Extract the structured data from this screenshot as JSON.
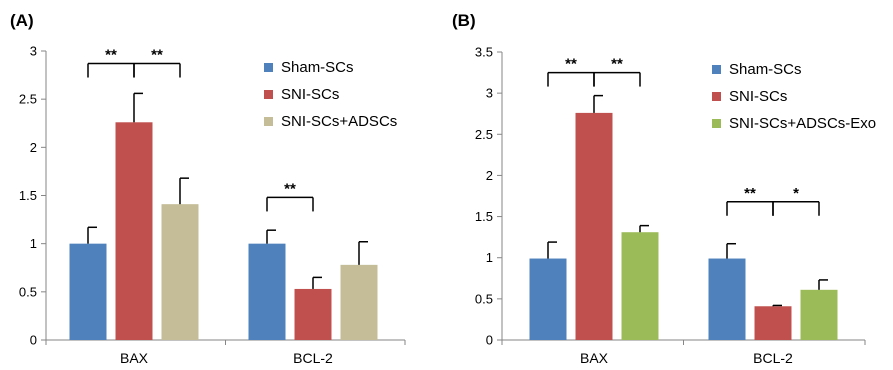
{
  "chart_data": [
    {
      "type": "bar",
      "panel_label": "(A)",
      "categories": [
        "BAX",
        "BCL-2"
      ],
      "ylim": [
        0,
        3
      ],
      "yticks": [
        0,
        0.5,
        1,
        1.5,
        2,
        2.5,
        3
      ],
      "ytick_labels": [
        "0",
        "0.5",
        "1",
        "1.5",
        "2",
        "2.5",
        "3"
      ],
      "grid": false,
      "legend_position": "top-right",
      "series": [
        {
          "name": "Sham-SCs",
          "color": "#4f81bd",
          "values": [
            1.0,
            1.0
          ],
          "errors": [
            0.17,
            0.14
          ]
        },
        {
          "name": "SNI-SCs",
          "color": "#c0504d",
          "values": [
            2.26,
            0.53
          ],
          "errors": [
            0.3,
            0.12
          ]
        },
        {
          "name": "SNI-SCs+ADSCs",
          "color": "#c4bd97",
          "values": [
            1.41,
            0.78
          ],
          "errors": [
            0.27,
            0.24
          ]
        }
      ],
      "significance": [
        {
          "category": 0,
          "from": 0,
          "to": 1,
          "label": "**",
          "level": 2.87
        },
        {
          "category": 0,
          "from": 1,
          "to": 2,
          "label": "**",
          "level": 2.87
        },
        {
          "category": 1,
          "from": 0,
          "to": 1,
          "label": "**",
          "level": 1.48
        }
      ]
    },
    {
      "type": "bar",
      "panel_label": "(B)",
      "categories": [
        "BAX",
        "BCL-2"
      ],
      "ylim": [
        0,
        3.5
      ],
      "yticks": [
        0,
        0.5,
        1,
        1.5,
        2,
        2.5,
        3,
        3.5
      ],
      "ytick_labels": [
        "0",
        "0.5",
        "1",
        "1.5",
        "2",
        "2.5",
        "3",
        "3.5"
      ],
      "grid": false,
      "legend_position": "top-right",
      "series": [
        {
          "name": "Sham-SCs",
          "color": "#4f81bd",
          "values": [
            0.99,
            0.99
          ],
          "errors": [
            0.2,
            0.18
          ]
        },
        {
          "name": "SNI-SCs",
          "color": "#c0504d",
          "values": [
            2.76,
            0.41
          ],
          "errors": [
            0.21,
            0.01
          ]
        },
        {
          "name": "SNI-SCs+ADSCs-Exo",
          "color": "#9bbb59",
          "values": [
            1.31,
            0.61
          ],
          "errors": [
            0.08,
            0.12
          ]
        }
      ],
      "significance": [
        {
          "category": 0,
          "from": 0,
          "to": 1,
          "label": "**",
          "level": 3.25
        },
        {
          "category": 0,
          "from": 1,
          "to": 2,
          "label": "**",
          "level": 3.25
        },
        {
          "category": 1,
          "from": 0,
          "to": 1,
          "label": "**",
          "level": 1.68
        },
        {
          "category": 1,
          "from": 1,
          "to": 2,
          "label": "*",
          "level": 1.68
        }
      ]
    }
  ]
}
